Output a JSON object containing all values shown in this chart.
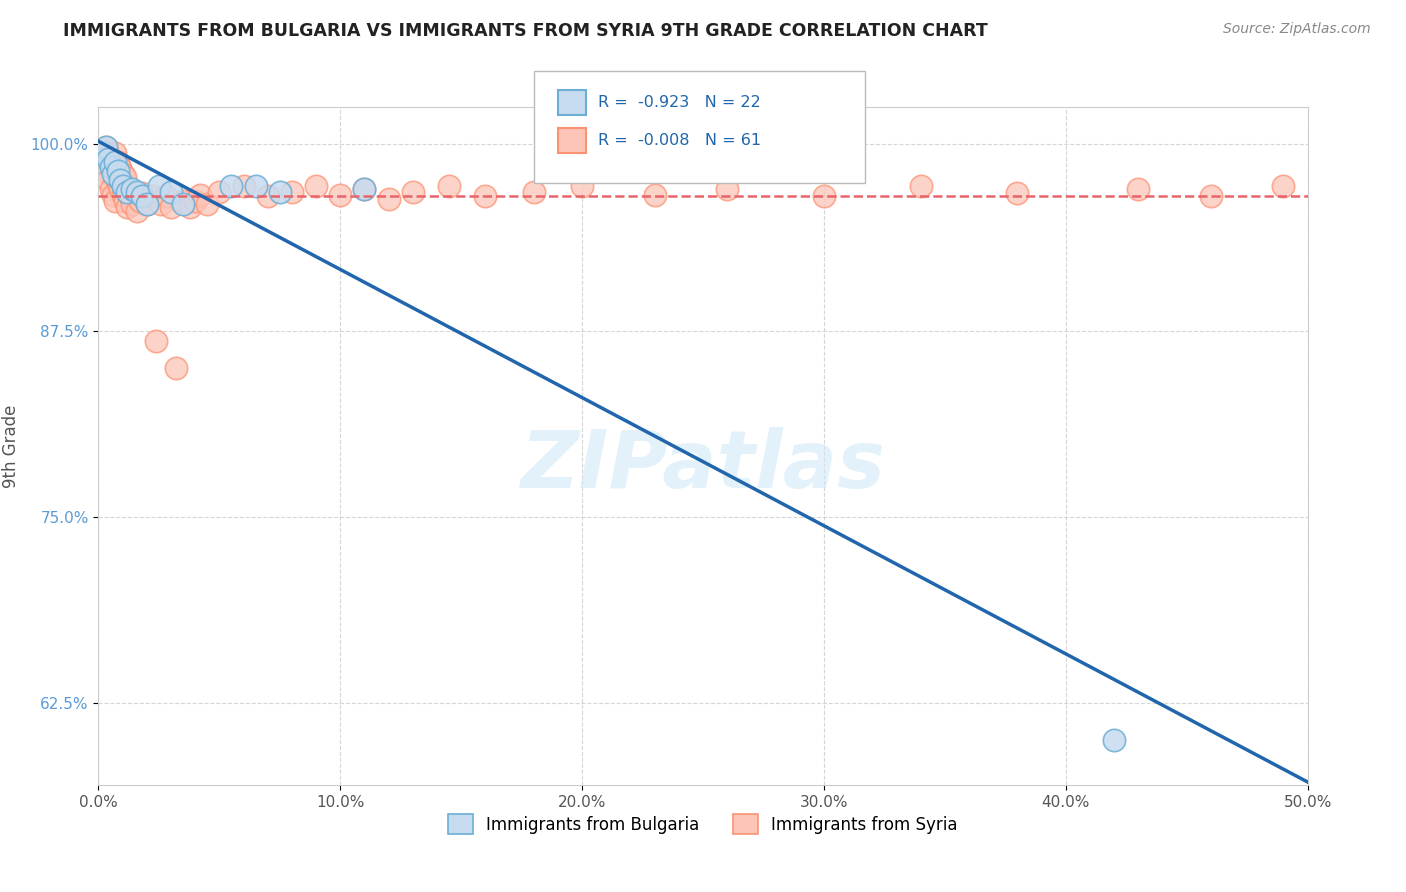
{
  "title": "IMMIGRANTS FROM BULGARIA VS IMMIGRANTS FROM SYRIA 9TH GRADE CORRELATION CHART",
  "source": "Source: ZipAtlas.com",
  "ylabel": "9th Grade",
  "xlim": [
    0.0,
    0.5
  ],
  "ylim": [
    0.57,
    1.025
  ],
  "xtick_vals": [
    0.0,
    0.1,
    0.2,
    0.3,
    0.4,
    0.5
  ],
  "ytick_vals": [
    0.625,
    0.75,
    0.875,
    1.0
  ],
  "ytick_labels": [
    "62.5%",
    "75.0%",
    "87.5%",
    "100.0%"
  ],
  "grid_color": "#cccccc",
  "watermark": "ZIPatlas",
  "legend_R_bulgaria": "-0.923",
  "legend_N_bulgaria": "22",
  "legend_R_syria": "-0.008",
  "legend_N_syria": "61",
  "bulgaria_color": "#6baed6",
  "bulgaria_fill": "#c6dbef",
  "syria_color": "#fc9272",
  "syria_fill": "#fcc5b8",
  "trend_bulgaria_color": "#2166ac",
  "trend_syria_color": "#e8636a",
  "bulgaria_trend_x0": 0.0,
  "bulgaria_trend_y0": 1.002,
  "bulgaria_trend_x1": 0.5,
  "bulgaria_trend_y1": 0.572,
  "syria_trend_x0": 0.0,
  "syria_trend_y0": 0.965,
  "syria_trend_x1": 0.5,
  "syria_trend_y1": 0.965,
  "bulgaria_points_x": [
    0.002,
    0.003,
    0.004,
    0.005,
    0.006,
    0.007,
    0.008,
    0.009,
    0.01,
    0.012,
    0.014,
    0.016,
    0.018,
    0.02,
    0.025,
    0.03,
    0.035,
    0.055,
    0.065,
    0.075,
    0.11,
    0.42
  ],
  "bulgaria_points_y": [
    0.995,
    0.998,
    0.99,
    0.985,
    0.98,
    0.988,
    0.982,
    0.976,
    0.972,
    0.968,
    0.97,
    0.968,
    0.965,
    0.96,
    0.972,
    0.968,
    0.96,
    0.972,
    0.972,
    0.968,
    0.97,
    0.6
  ],
  "syria_points_x": [
    0.001,
    0.002,
    0.003,
    0.003,
    0.004,
    0.004,
    0.005,
    0.005,
    0.006,
    0.006,
    0.007,
    0.007,
    0.007,
    0.008,
    0.008,
    0.009,
    0.009,
    0.01,
    0.01,
    0.011,
    0.011,
    0.012,
    0.013,
    0.014,
    0.015,
    0.016,
    0.017,
    0.018,
    0.02,
    0.022,
    0.024,
    0.026,
    0.028,
    0.03,
    0.032,
    0.035,
    0.038,
    0.04,
    0.042,
    0.045,
    0.05,
    0.06,
    0.07,
    0.08,
    0.09,
    0.1,
    0.11,
    0.12,
    0.13,
    0.145,
    0.16,
    0.18,
    0.2,
    0.23,
    0.26,
    0.3,
    0.34,
    0.38,
    0.43,
    0.46,
    0.49
  ],
  "syria_points_y": [
    0.992,
    0.988,
    0.982,
    0.998,
    0.976,
    0.994,
    0.97,
    0.99,
    0.966,
    0.986,
    0.962,
    0.978,
    0.994,
    0.974,
    0.988,
    0.97,
    0.984,
    0.966,
    0.98,
    0.962,
    0.978,
    0.958,
    0.965,
    0.96,
    0.968,
    0.955,
    0.962,
    0.967,
    0.96,
    0.965,
    0.868,
    0.96,
    0.965,
    0.958,
    0.85,
    0.962,
    0.958,
    0.962,
    0.966,
    0.96,
    0.968,
    0.972,
    0.965,
    0.968,
    0.972,
    0.966,
    0.97,
    0.963,
    0.968,
    0.972,
    0.965,
    0.968,
    0.972,
    0.966,
    0.97,
    0.965,
    0.972,
    0.967,
    0.97,
    0.965,
    0.972
  ]
}
